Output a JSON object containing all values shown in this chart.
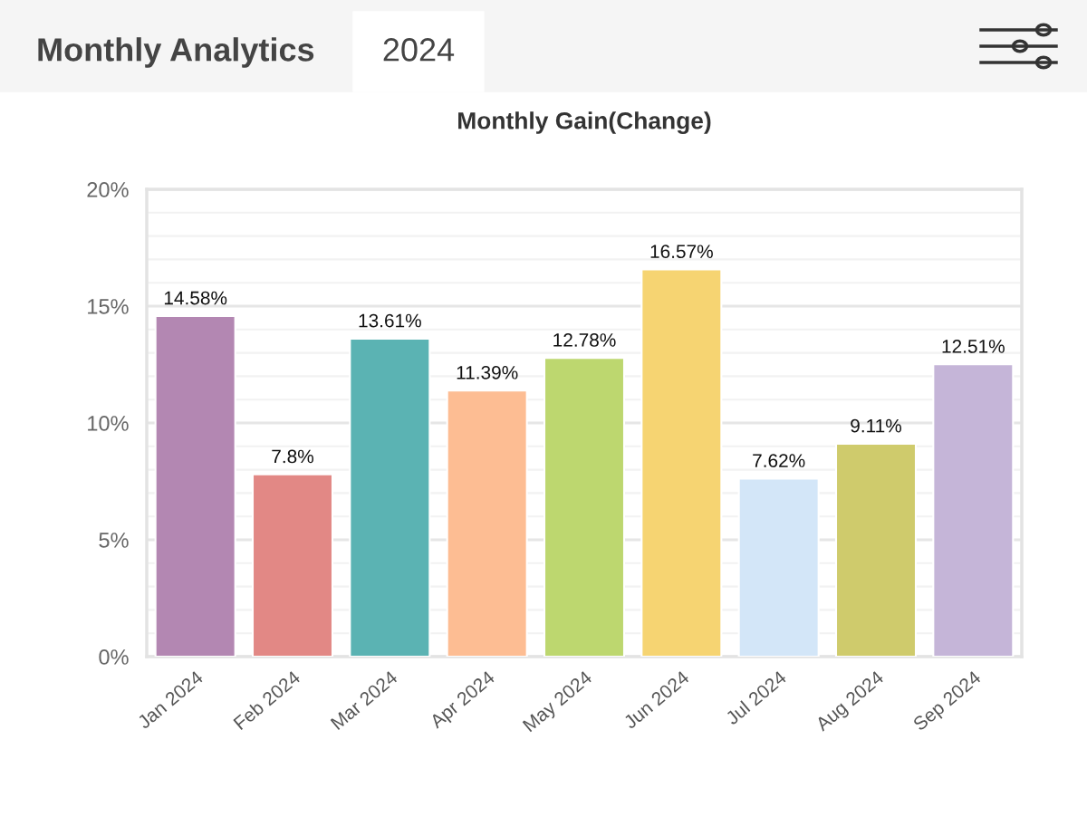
{
  "chart_data": {
    "type": "bar",
    "title": "Monthly Gain(Change)",
    "annotations": [
      "Monthly Analytics",
      "2024"
    ],
    "categories": [
      "Jan 2024",
      "Feb 2024",
      "Mar 2024",
      "Apr 2024",
      "May 2024",
      "Jun 2024",
      "Jul 2024",
      "Aug 2024",
      "Sep 2024"
    ],
    "values": [
      14.58,
      7.8,
      13.61,
      11.39,
      12.78,
      16.57,
      7.62,
      9.11,
      12.51
    ],
    "value_labels": [
      "14.58%",
      "7.8%",
      "13.61%",
      "11.39%",
      "12.78%",
      "16.57%",
      "7.62%",
      "9.11%",
      "12.51%"
    ],
    "colors": [
      "#b387b2",
      "#e28885",
      "#5bb3b3",
      "#fdbd93",
      "#bdd76f",
      "#f6d472",
      "#d3e6f8",
      "#cfcb6c",
      "#c5b5d8"
    ],
    "ylim": [
      0,
      20
    ],
    "yticks": [
      {
        "value": 0,
        "label": "0%"
      },
      {
        "value": 5,
        "label": "5%"
      },
      {
        "value": 10,
        "label": "10%"
      },
      {
        "value": 15,
        "label": "15%"
      },
      {
        "value": 20,
        "label": "20%"
      }
    ],
    "grid": "y"
  }
}
